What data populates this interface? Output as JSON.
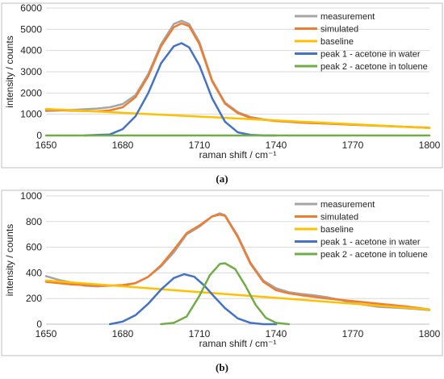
{
  "chart_data": [
    {
      "type": "line",
      "panel_label": "(a)",
      "xlabel": "raman shift / cm⁻¹",
      "ylabel": "intensity / counts",
      "xlim": [
        1650,
        1800
      ],
      "ylim": [
        0,
        6000
      ],
      "xticks": [
        1650,
        1680,
        1710,
        1740,
        1770,
        1800
      ],
      "yticks": [
        0,
        1000,
        2000,
        3000,
        4000,
        5000,
        6000
      ],
      "grid": "horizontal",
      "legend": "top-right",
      "series": [
        {
          "name": "measurement",
          "color": "#a5a5a5",
          "x": [
            1650,
            1660,
            1670,
            1675,
            1680,
            1685,
            1690,
            1695,
            1700,
            1703,
            1706,
            1710,
            1715,
            1720,
            1725,
            1730,
            1735,
            1740,
            1750,
            1760,
            1770,
            1780,
            1790,
            1800
          ],
          "y": [
            1150,
            1200,
            1270,
            1330,
            1480,
            1900,
            2900,
            4300,
            5250,
            5400,
            5250,
            4400,
            2600,
            1550,
            1100,
            870,
            760,
            690,
            600,
            560,
            510,
            460,
            410,
            360
          ]
        },
        {
          "name": "simulated",
          "color": "#ed7d31",
          "x": [
            1650,
            1660,
            1670,
            1675,
            1680,
            1685,
            1690,
            1695,
            1700,
            1703,
            1706,
            1710,
            1715,
            1720,
            1725,
            1730,
            1735,
            1740,
            1750,
            1760,
            1770,
            1780,
            1790,
            1800
          ],
          "y": [
            1210,
            1170,
            1140,
            1180,
            1330,
            1800,
            2800,
            4200,
            5100,
            5280,
            5150,
            4300,
            2550,
            1500,
            1050,
            830,
            740,
            680,
            610,
            560,
            510,
            460,
            410,
            360
          ]
        },
        {
          "name": "baseline",
          "color": "#ffc000",
          "x": [
            1650,
            1800
          ],
          "y": [
            1250,
            350
          ]
        },
        {
          "name": "peak 1 - acetone in water",
          "color": "#4472c4",
          "x": [
            1665,
            1675,
            1680,
            1685,
            1690,
            1695,
            1700,
            1703,
            1706,
            1710,
            1715,
            1720,
            1725,
            1730,
            1735,
            1740
          ],
          "y": [
            0,
            50,
            300,
            900,
            2000,
            3400,
            4200,
            4350,
            4150,
            3300,
            1750,
            650,
            150,
            30,
            0,
            0
          ]
        },
        {
          "name": "peak 2 - acetone in toluene",
          "color": "#70ad47",
          "x": [
            1650,
            1800
          ],
          "y": [
            0,
            0
          ]
        }
      ]
    },
    {
      "type": "line",
      "panel_label": "(b)",
      "xlabel": "raman shift / cm⁻¹",
      "ylabel": "intensity / counts",
      "xlim": [
        1650,
        1800
      ],
      "ylim": [
        0,
        1000
      ],
      "xticks": [
        1650,
        1680,
        1710,
        1740,
        1770,
        1800
      ],
      "yticks": [
        0,
        200,
        400,
        600,
        800,
        1000
      ],
      "grid": "horizontal",
      "legend": "top-right",
      "series": [
        {
          "name": "measurement",
          "color": "#a5a5a5",
          "x": [
            1650,
            1655,
            1660,
            1665,
            1670,
            1675,
            1680,
            1685,
            1690,
            1695,
            1700,
            1705,
            1710,
            1715,
            1718,
            1720,
            1725,
            1730,
            1735,
            1740,
            1745,
            1750,
            1755,
            1760,
            1765,
            1770,
            1780,
            1790,
            1800
          ],
          "y": [
            375,
            345,
            325,
            300,
            295,
            300,
            300,
            320,
            370,
            450,
            560,
            700,
            760,
            840,
            865,
            850,
            690,
            480,
            340,
            280,
            250,
            235,
            225,
            210,
            190,
            165,
            135,
            125,
            110
          ]
        },
        {
          "name": "simulated",
          "color": "#ed7d31",
          "x": [
            1650,
            1660,
            1670,
            1675,
            1680,
            1685,
            1690,
            1695,
            1700,
            1705,
            1710,
            1715,
            1718,
            1720,
            1725,
            1730,
            1735,
            1740,
            1745,
            1750,
            1760,
            1770,
            1780,
            1790,
            1800
          ],
          "y": [
            330,
            310,
            300,
            300,
            305,
            320,
            370,
            460,
            580,
            710,
            770,
            840,
            855,
            845,
            680,
            470,
            330,
            265,
            240,
            225,
            200,
            180,
            160,
            140,
            115
          ]
        },
        {
          "name": "baseline",
          "color": "#ffc000",
          "x": [
            1650,
            1800
          ],
          "y": [
            340,
            115
          ]
        },
        {
          "name": "peak 1 - acetone in water",
          "color": "#4472c4",
          "x": [
            1675,
            1680,
            1685,
            1690,
            1695,
            1700,
            1704,
            1708,
            1712,
            1716,
            1720,
            1725,
            1730,
            1735,
            1740
          ],
          "y": [
            0,
            20,
            70,
            160,
            270,
            360,
            390,
            370,
            300,
            210,
            125,
            45,
            10,
            0,
            0
          ]
        },
        {
          "name": "peak 2 - acetone in toluene",
          "color": "#70ad47",
          "x": [
            1695,
            1700,
            1705,
            1710,
            1714,
            1718,
            1720,
            1724,
            1728,
            1732,
            1736,
            1740,
            1745
          ],
          "y": [
            0,
            10,
            60,
            220,
            380,
            470,
            475,
            430,
            300,
            150,
            50,
            10,
            0
          ]
        }
      ]
    }
  ]
}
